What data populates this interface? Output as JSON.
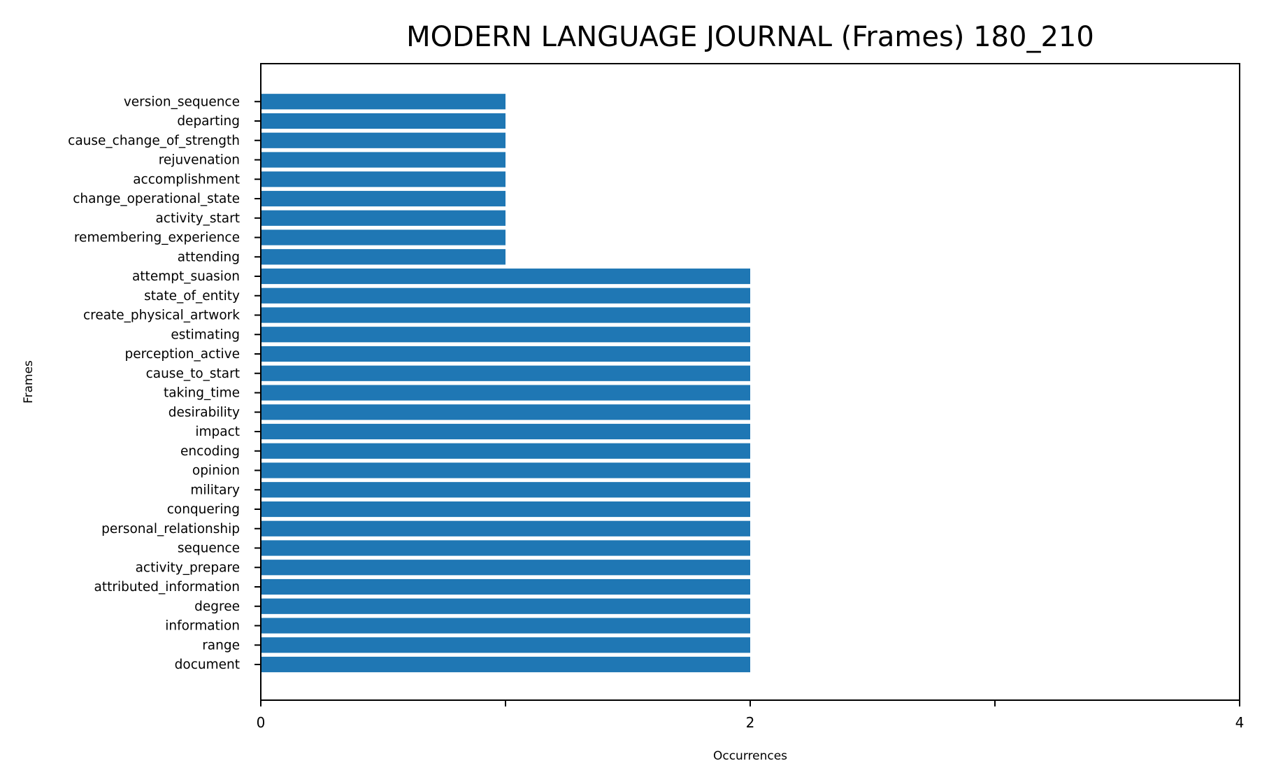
{
  "chart_data": {
    "type": "bar",
    "orientation": "horizontal",
    "title": "MODERN LANGUAGE JOURNAL (Frames) 180_210",
    "xlabel": "Occurrences",
    "ylabel": "Frames",
    "xlim": [
      0,
      4
    ],
    "xticks": [
      0,
      1,
      2,
      3,
      4
    ],
    "xtick_labels": [
      "0",
      "",
      "2",
      "",
      "4"
    ],
    "bar_color": "#1f77b4",
    "grid": false,
    "categories": [
      "document",
      "range",
      "information",
      "degree",
      "attributed_information",
      "activity_prepare",
      "sequence",
      "personal_relationship",
      "conquering",
      "military",
      "opinion",
      "encoding",
      "impact",
      "desirability",
      "taking_time",
      "cause_to_start",
      "perception_active",
      "estimating",
      "create_physical_artwork",
      "state_of_entity",
      "attempt_suasion",
      "attending",
      "remembering_experience",
      "activity_start",
      "change_operational_state",
      "accomplishment",
      "rejuvenation",
      "cause_change_of_strength",
      "departing",
      "version_sequence"
    ],
    "values": [
      2,
      2,
      2,
      2,
      2,
      2,
      2,
      2,
      2,
      2,
      2,
      2,
      2,
      2,
      2,
      2,
      2,
      2,
      2,
      2,
      2,
      1,
      1,
      1,
      1,
      1,
      1,
      1,
      1,
      1
    ]
  }
}
